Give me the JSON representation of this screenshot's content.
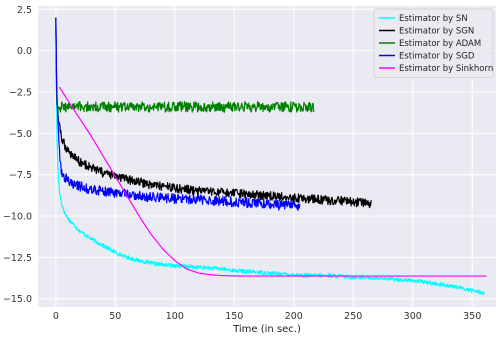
{
  "chart_data": {
    "type": "line",
    "title": "",
    "xlabel": "Time (in sec.)",
    "ylabel": "",
    "xlim": [
      -15,
      370
    ],
    "ylim": [
      -15.5,
      2.7
    ],
    "x_ticks": [
      0,
      50,
      100,
      150,
      200,
      250,
      300,
      350
    ],
    "x_tick_labels": [
      "0",
      "50",
      "100",
      "150",
      "200",
      "250",
      "300",
      "350"
    ],
    "y_ticks": [
      2.5,
      0.0,
      -2.5,
      -5.0,
      -7.5,
      -10.0,
      -12.5,
      -15.0
    ],
    "y_tick_labels": [
      "2.5",
      "0.0",
      "−2.5",
      "−5.0",
      "−7.5",
      "−10.0",
      "−12.5",
      "−15.0"
    ],
    "grid": true,
    "legend_position": "top-right",
    "series": [
      {
        "name": "Estimator by SN",
        "color": "#00ffff",
        "noise": 0.12,
        "x": [
          0,
          0.5,
          1,
          2,
          3,
          5,
          8,
          12,
          20,
          30,
          40,
          50,
          60,
          70,
          80,
          90,
          100,
          110,
          120,
          130,
          140,
          150,
          160,
          170,
          180,
          190,
          200,
          210,
          220,
          230,
          240,
          250,
          260,
          270,
          280,
          290,
          300,
          310,
          320,
          330,
          340,
          350,
          360
        ],
        "y": [
          2.0,
          -2.5,
          -5.5,
          -7.5,
          -8.5,
          -9.3,
          -9.9,
          -10.3,
          -10.9,
          -11.4,
          -11.8,
          -12.2,
          -12.5,
          -12.7,
          -12.85,
          -12.95,
          -13.0,
          -13.05,
          -13.1,
          -13.15,
          -13.2,
          -13.3,
          -13.35,
          -13.4,
          -13.45,
          -13.5,
          -13.55,
          -13.6,
          -13.6,
          -13.6,
          -13.65,
          -13.7,
          -13.7,
          -13.75,
          -13.8,
          -13.85,
          -13.9,
          -14.0,
          -14.1,
          -14.2,
          -14.35,
          -14.5,
          -14.65
        ]
      },
      {
        "name": "Estimator by SGN",
        "color": "#000000",
        "noise": 0.28,
        "x": [
          0,
          0.5,
          1,
          2,
          3,
          5,
          8,
          12,
          20,
          30,
          40,
          50,
          60,
          70,
          80,
          90,
          100,
          110,
          120,
          130,
          140,
          150,
          160,
          170,
          180,
          190,
          200,
          210,
          220,
          230,
          240,
          250,
          260,
          265
        ],
        "y": [
          2.0,
          -1.5,
          -3.0,
          -4.0,
          -4.6,
          -5.3,
          -5.8,
          -6.2,
          -6.7,
          -7.1,
          -7.4,
          -7.6,
          -7.8,
          -7.95,
          -8.1,
          -8.2,
          -8.3,
          -8.4,
          -8.5,
          -8.55,
          -8.6,
          -8.65,
          -8.7,
          -8.75,
          -8.8,
          -8.85,
          -8.9,
          -8.95,
          -9.0,
          -9.05,
          -9.1,
          -9.15,
          -9.2,
          -9.3
        ]
      },
      {
        "name": "Estimator by ADAM",
        "color": "#008000",
        "noise": 0.32,
        "x": [
          0,
          0.3,
          0.6,
          1,
          2,
          5,
          20,
          50,
          100,
          150,
          200,
          217
        ],
        "y": [
          1.5,
          -0.5,
          -2.5,
          -3.3,
          -3.4,
          -3.4,
          -3.4,
          -3.4,
          -3.4,
          -3.4,
          -3.4,
          -3.4
        ]
      },
      {
        "name": "Estimator by SGD",
        "color": "#0000ff",
        "noise": 0.3,
        "x": [
          0,
          0.5,
          1,
          2,
          3,
          4,
          5,
          8,
          12,
          20,
          30,
          40,
          50,
          60,
          70,
          80,
          90,
          100,
          110,
          120,
          130,
          140,
          150,
          160,
          170,
          180,
          190,
          200,
          205
        ],
        "y": [
          2.0,
          -1.0,
          -3.0,
          -4.5,
          -6.0,
          -7.0,
          -7.4,
          -7.7,
          -8.0,
          -8.2,
          -8.4,
          -8.5,
          -8.6,
          -8.7,
          -8.8,
          -8.85,
          -8.9,
          -8.95,
          -9.0,
          -9.0,
          -9.05,
          -9.1,
          -9.15,
          -9.2,
          -9.25,
          -9.3,
          -9.35,
          -9.4,
          -9.5
        ]
      },
      {
        "name": "Estimator by Sinkhorn",
        "color": "#ff00ff",
        "noise": 0,
        "x": [
          3,
          10,
          20,
          30,
          40,
          50,
          60,
          70,
          80,
          90,
          100,
          110,
          120,
          130,
          140,
          150,
          160,
          180,
          200,
          250,
          300,
          362
        ],
        "y": [
          -2.2,
          -3.0,
          -4.1,
          -5.2,
          -6.4,
          -7.6,
          -8.8,
          -10.0,
          -11.1,
          -12.0,
          -12.7,
          -13.2,
          -13.45,
          -13.55,
          -13.6,
          -13.62,
          -13.63,
          -13.63,
          -13.63,
          -13.63,
          -13.63,
          -13.63
        ]
      }
    ]
  }
}
